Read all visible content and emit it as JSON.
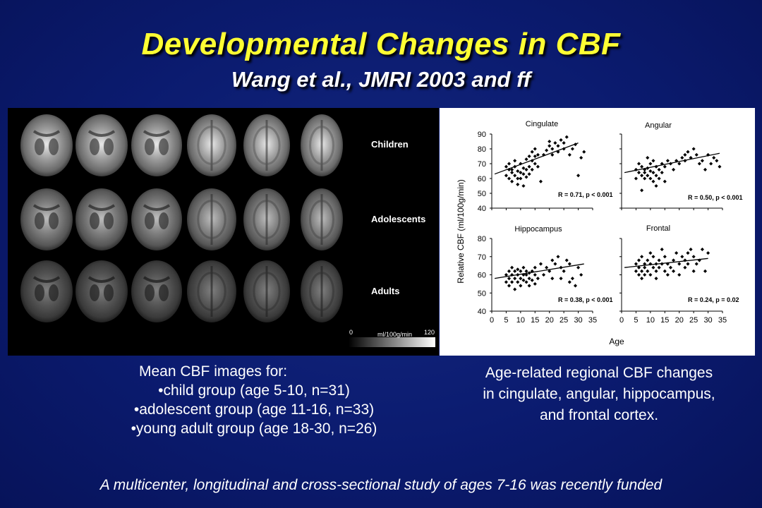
{
  "slide": {
    "title": "Developmental Changes in CBF",
    "subtitle": "Wang et al., JMRI 2003 and ff",
    "footer": "A multicenter, longitudinal and cross-sectional study of ages 7-16 was recently funded"
  },
  "brain_figure": {
    "rows": [
      {
        "label": "Children",
        "brightness": 1.0
      },
      {
        "label": "Adolescents",
        "brightness": 0.82
      },
      {
        "label": "Adults",
        "brightness": 0.55
      }
    ],
    "scale_min": "0",
    "scale_unit": "ml/100g/min",
    "scale_max": "120"
  },
  "left_caption": {
    "heading": "Mean CBF images for:",
    "items": [
      "•child group (age 5-10, n=31)",
      "•adolescent group (age 11-16, n=33)",
      "•young adult group (age 18-30, n=26)"
    ]
  },
  "right_caption": {
    "lines": [
      "Age-related regional CBF changes",
      "in cingulate, angular, hippocampus,",
      "and frontal cortex."
    ]
  },
  "chart_data": {
    "type": "scatter",
    "ylabel": "Relative CBF  (ml/100g/min)",
    "xlabel": "Age",
    "x_ticks": [
      "0",
      "5",
      "10",
      "15",
      "20",
      "25",
      "30",
      "35"
    ],
    "xlim": [
      0,
      35
    ],
    "panels": [
      {
        "name": "Cingulate",
        "stat": "R = 0.71, p < 0.001",
        "ylim": [
          40,
          90
        ],
        "y_ticks": [
          "90",
          "80",
          "70",
          "60",
          "50",
          "40"
        ],
        "fit": [
          [
            1,
            63
          ],
          [
            30,
            84
          ]
        ],
        "points": [
          [
            5,
            68
          ],
          [
            5,
            62
          ],
          [
            6,
            66
          ],
          [
            6,
            60
          ],
          [
            6,
            70
          ],
          [
            7,
            64
          ],
          [
            7,
            58
          ],
          [
            7,
            66
          ],
          [
            8,
            62
          ],
          [
            8,
            68
          ],
          [
            8,
            72
          ],
          [
            9,
            56
          ],
          [
            9,
            65
          ],
          [
            9,
            60
          ],
          [
            10,
            64
          ],
          [
            10,
            70
          ],
          [
            10,
            60
          ],
          [
            11,
            63
          ],
          [
            11,
            55
          ],
          [
            11,
            67
          ],
          [
            12,
            66
          ],
          [
            12,
            73
          ],
          [
            12,
            61
          ],
          [
            13,
            68
          ],
          [
            13,
            75
          ],
          [
            13,
            63
          ],
          [
            14,
            78
          ],
          [
            14,
            72
          ],
          [
            14,
            66
          ],
          [
            15,
            70
          ],
          [
            15,
            80
          ],
          [
            15,
            75
          ],
          [
            16,
            68
          ],
          [
            16,
            76
          ],
          [
            17,
            58
          ],
          [
            18,
            76
          ],
          [
            19,
            79
          ],
          [
            20,
            82
          ],
          [
            20,
            85
          ],
          [
            21,
            76
          ],
          [
            21,
            80
          ],
          [
            22,
            84
          ],
          [
            23,
            78
          ],
          [
            23,
            82
          ],
          [
            24,
            86
          ],
          [
            25,
            80
          ],
          [
            25,
            84
          ],
          [
            26,
            88
          ],
          [
            27,
            76
          ],
          [
            28,
            80
          ],
          [
            29,
            83
          ],
          [
            30,
            62
          ],
          [
            31,
            74
          ],
          [
            32,
            78
          ]
        ]
      },
      {
        "name": "Angular",
        "stat": "R = 0.50, p < 0.001",
        "ylim": [
          40,
          90
        ],
        "y_ticks": [
          "90",
          "80",
          "70",
          "60",
          "50",
          "40"
        ],
        "fit": [
          [
            1,
            64
          ],
          [
            34,
            77
          ]
        ],
        "points": [
          [
            5,
            66
          ],
          [
            5,
            60
          ],
          [
            6,
            70
          ],
          [
            6,
            64
          ],
          [
            7,
            62
          ],
          [
            7,
            52
          ],
          [
            7,
            68
          ],
          [
            8,
            60
          ],
          [
            8,
            66
          ],
          [
            8,
            64
          ],
          [
            9,
            74
          ],
          [
            9,
            62
          ],
          [
            9,
            67
          ],
          [
            10,
            60
          ],
          [
            10,
            65
          ],
          [
            10,
            70
          ],
          [
            11,
            72
          ],
          [
            11,
            64
          ],
          [
            11,
            58
          ],
          [
            12,
            62
          ],
          [
            12,
            68
          ],
          [
            12,
            55
          ],
          [
            13,
            66
          ],
          [
            13,
            60
          ],
          [
            14,
            70
          ],
          [
            14,
            64
          ],
          [
            15,
            68
          ],
          [
            15,
            58
          ],
          [
            16,
            72
          ],
          [
            17,
            70
          ],
          [
            18,
            66
          ],
          [
            19,
            72
          ],
          [
            20,
            70
          ],
          [
            21,
            74
          ],
          [
            22,
            76
          ],
          [
            22,
            72
          ],
          [
            23,
            78
          ],
          [
            24,
            74
          ],
          [
            25,
            80
          ],
          [
            26,
            76
          ],
          [
            27,
            70
          ],
          [
            28,
            72
          ],
          [
            29,
            66
          ],
          [
            30,
            76
          ],
          [
            31,
            70
          ],
          [
            32,
            74
          ],
          [
            33,
            72
          ],
          [
            34,
            68
          ]
        ]
      },
      {
        "name": "Hippocampus",
        "stat": "R = 0.38, p < 0.001",
        "ylim": [
          40,
          80
        ],
        "y_ticks": [
          "80",
          "70",
          "60",
          "50",
          "40"
        ],
        "fit": [
          [
            1,
            58
          ],
          [
            32,
            66
          ]
        ],
        "points": [
          [
            5,
            60
          ],
          [
            5,
            56
          ],
          [
            6,
            62
          ],
          [
            6,
            58
          ],
          [
            6,
            54
          ],
          [
            7,
            64
          ],
          [
            7,
            60
          ],
          [
            7,
            56
          ],
          [
            8,
            58
          ],
          [
            8,
            62
          ],
          [
            8,
            52
          ],
          [
            9,
            60
          ],
          [
            9,
            56
          ],
          [
            9,
            63
          ],
          [
            10,
            58
          ],
          [
            10,
            62
          ],
          [
            10,
            54
          ],
          [
            11,
            60
          ],
          [
            11,
            57
          ],
          [
            11,
            64
          ],
          [
            12,
            56
          ],
          [
            12,
            60
          ],
          [
            12,
            62
          ],
          [
            13,
            58
          ],
          [
            13,
            54
          ],
          [
            13,
            61
          ],
          [
            14,
            62
          ],
          [
            14,
            57
          ],
          [
            15,
            60
          ],
          [
            15,
            64
          ],
          [
            15,
            55
          ],
          [
            16,
            58
          ],
          [
            17,
            66
          ],
          [
            18,
            60
          ],
          [
            19,
            64
          ],
          [
            20,
            62
          ],
          [
            21,
            68
          ],
          [
            21,
            58
          ],
          [
            22,
            66
          ],
          [
            23,
            70
          ],
          [
            24,
            64
          ],
          [
            24,
            58
          ],
          [
            25,
            62
          ],
          [
            26,
            68
          ],
          [
            27,
            66
          ],
          [
            27,
            56
          ],
          [
            28,
            58
          ],
          [
            29,
            54
          ],
          [
            30,
            64
          ],
          [
            31,
            60
          ]
        ]
      },
      {
        "name": "Frontal",
        "stat": "R = 0.24, p = 0.02",
        "ylim": [
          40,
          80
        ],
        "y_ticks": [
          "80",
          "70",
          "60",
          "50",
          "40"
        ],
        "fit": [
          [
            1,
            64
          ],
          [
            30,
            69
          ]
        ],
        "points": [
          [
            5,
            66
          ],
          [
            5,
            62
          ],
          [
            6,
            68
          ],
          [
            6,
            60
          ],
          [
            6,
            64
          ],
          [
            7,
            70
          ],
          [
            7,
            62
          ],
          [
            7,
            58
          ],
          [
            8,
            66
          ],
          [
            8,
            64
          ],
          [
            8,
            60
          ],
          [
            9,
            68
          ],
          [
            9,
            62
          ],
          [
            10,
            72
          ],
          [
            10,
            66
          ],
          [
            10,
            60
          ],
          [
            11,
            64
          ],
          [
            11,
            70
          ],
          [
            12,
            62
          ],
          [
            12,
            66
          ],
          [
            12,
            58
          ],
          [
            13,
            68
          ],
          [
            13,
            64
          ],
          [
            14,
            74
          ],
          [
            14,
            66
          ],
          [
            15,
            62
          ],
          [
            15,
            70
          ],
          [
            16,
            60
          ],
          [
            16,
            66
          ],
          [
            17,
            64
          ],
          [
            18,
            68
          ],
          [
            18,
            62
          ],
          [
            19,
            72
          ],
          [
            20,
            66
          ],
          [
            20,
            60
          ],
          [
            21,
            70
          ],
          [
            22,
            64
          ],
          [
            22,
            68
          ],
          [
            23,
            72
          ],
          [
            23,
            66
          ],
          [
            24,
            74
          ],
          [
            25,
            62
          ],
          [
            25,
            70
          ],
          [
            26,
            66
          ],
          [
            27,
            68
          ],
          [
            28,
            74
          ],
          [
            29,
            62
          ],
          [
            30,
            72
          ]
        ]
      }
    ]
  }
}
